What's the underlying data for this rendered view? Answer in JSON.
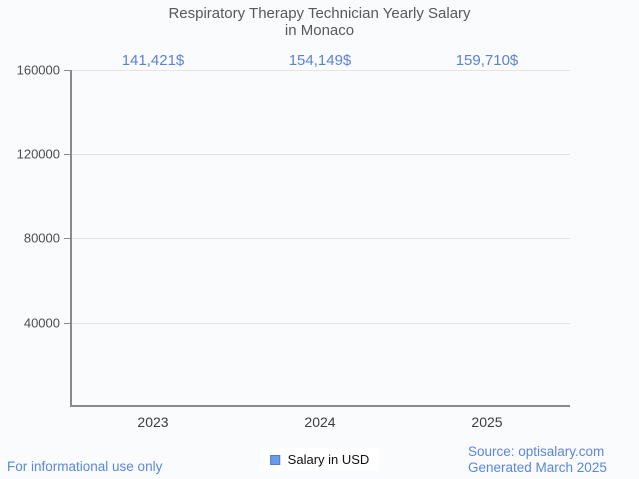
{
  "title": {
    "line1": "Respiratory Therapy Technician Yearly Salary",
    "line2": "in Monaco"
  },
  "chart_data": {
    "type": "bar",
    "title": "Respiratory Therapy Technician Yearly Salary in Monaco",
    "categories": [
      "2023",
      "2024",
      "2025"
    ],
    "series": [
      {
        "name": "Salary in USD",
        "values": [
          141421,
          154149,
          159710
        ]
      }
    ],
    "value_labels": [
      "141,421$",
      "154,149$",
      "159,710$"
    ],
    "xlabel": "",
    "ylabel": "",
    "ylim": [
      0,
      160000
    ],
    "yticks": [
      40000,
      80000,
      120000,
      160000
    ],
    "ytick_labels": [
      "40000",
      "80000",
      "120000",
      "160000"
    ],
    "grid": true,
    "legend_position": "bottom",
    "bar_gradient": [
      "#aed5f9",
      "#ffffff",
      "#6694ea"
    ]
  },
  "legend": {
    "label": "Salary in USD",
    "marker_color": "#6d9ae8"
  },
  "footer": {
    "left": "For informational use only",
    "source": "Source: optisalary.com",
    "generated": "Generated March 2025"
  },
  "colors": {
    "background": "#fafbfd",
    "title_text": "#595959",
    "value_label_text": "#5b82d7",
    "footer_text": "#5b87d9",
    "axis": "#8a8a8a",
    "gridline": "#e4e4e4"
  }
}
